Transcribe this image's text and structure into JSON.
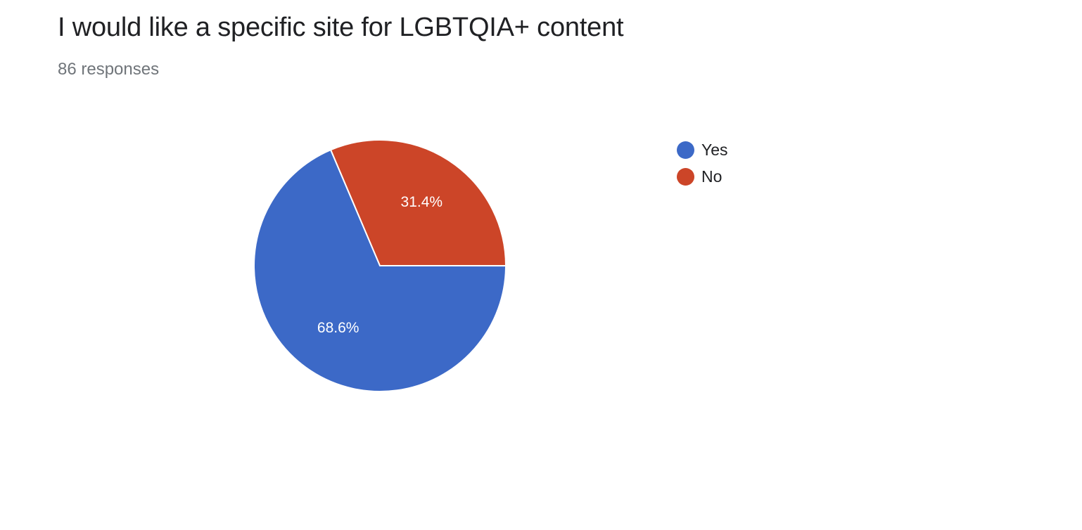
{
  "question": {
    "title": "I would like a specific site for LGBTQIA+ content",
    "responses": "86 responses"
  },
  "chart_data": {
    "type": "pie",
    "title": "I would like a specific site for LGBTQIA+ content",
    "total_responses": 86,
    "start_slice": "No",
    "slices": [
      {
        "label": "No",
        "value": 31.4,
        "display": "31.4%",
        "color": "#cc4528"
      },
      {
        "label": "Yes",
        "value": 68.6,
        "display": "68.6%",
        "color": "#3c69c7"
      }
    ],
    "legend": {
      "placement": "right",
      "items": [
        {
          "label": "Yes",
          "color": "#3c69c7"
        },
        {
          "label": "No",
          "color": "#cc4528"
        }
      ]
    }
  }
}
